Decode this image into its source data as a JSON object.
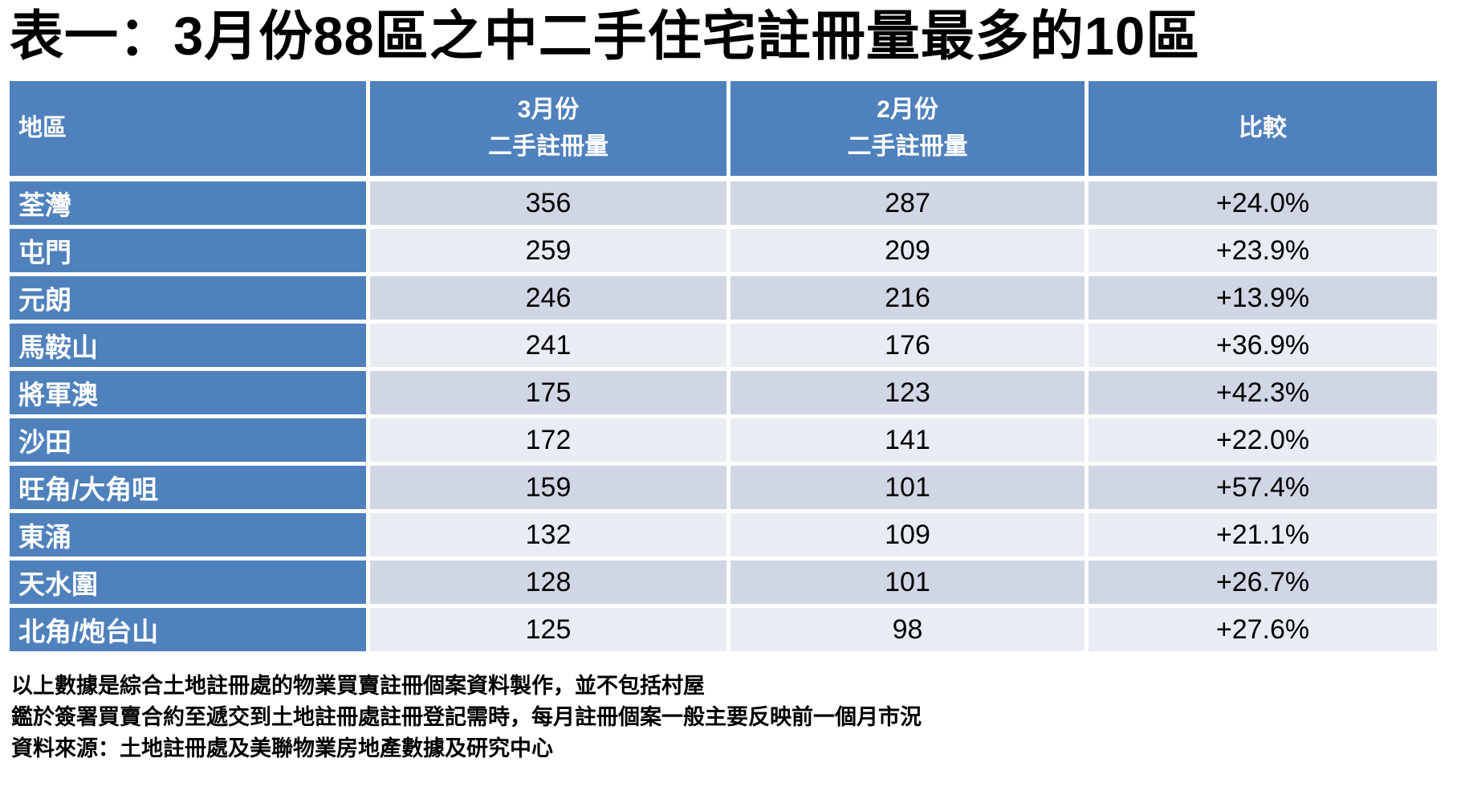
{
  "title": "表一：3月份88區之中二手住宅註冊量最多的10區",
  "colors": {
    "header_blue": "#4F81BD",
    "band_dark": "#D0D6E3",
    "band_light": "#E9EDF3",
    "header_text": "#FFFFFF",
    "body_text": "#000000"
  },
  "chart_data": {
    "type": "table",
    "title": "表一：3月份88區之中二手住宅註冊量最多的10區",
    "columns": [
      {
        "lines": [
          "地區",
          ""
        ]
      },
      {
        "lines": [
          "3月份",
          "二手註冊量"
        ]
      },
      {
        "lines": [
          "2月份",
          "二手註冊量"
        ]
      },
      {
        "lines": [
          "比較",
          ""
        ]
      }
    ],
    "rows": [
      {
        "district": "荃灣",
        "march": 356,
        "february": 287,
        "change": "+24.0%"
      },
      {
        "district": "屯門",
        "march": 259,
        "february": 209,
        "change": "+23.9%"
      },
      {
        "district": "元朗",
        "march": 246,
        "february": 216,
        "change": "+13.9%"
      },
      {
        "district": "馬鞍山",
        "march": 241,
        "february": 176,
        "change": "+36.9%"
      },
      {
        "district": "將軍澳",
        "march": 175,
        "february": 123,
        "change": "+42.3%"
      },
      {
        "district": "沙田",
        "march": 172,
        "february": 141,
        "change": "+22.0%"
      },
      {
        "district": "旺角/大角咀",
        "march": 159,
        "february": 101,
        "change": "+57.4%"
      },
      {
        "district": "東涌",
        "march": 132,
        "february": 109,
        "change": "+21.1%"
      },
      {
        "district": "天水圍",
        "march": 128,
        "february": 101,
        "change": "+26.7%"
      },
      {
        "district": "北角/炮台山",
        "march": 125,
        "february": 98,
        "change": "+27.6%"
      }
    ],
    "layout": {
      "banded_rows": true,
      "header_fill": "#4F81BD",
      "grid_color": "#FFFFFF"
    }
  },
  "footnotes": [
    "以上數據是綜合土地註冊處的物業買賣註冊個案資料製作，並不包括村屋",
    "鑑於簽署買賣合約至遞交到土地註冊處註冊登記需時，每月註冊個案一般主要反映前一個月市況",
    "資料來源：土地註冊處及美聯物業房地產數據及研究中心"
  ]
}
